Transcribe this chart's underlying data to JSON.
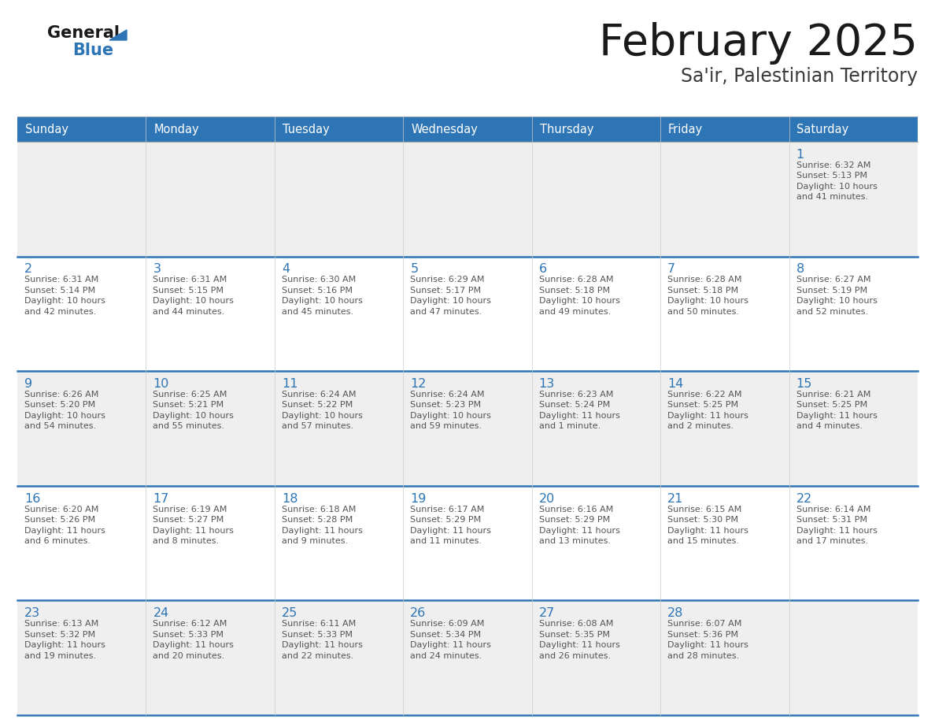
{
  "title": "February 2025",
  "subtitle": "Sa'ir, Palestinian Territory",
  "header_bg": "#2E75B6",
  "header_text_color": "#FFFFFF",
  "cell_bg_white": "#FFFFFF",
  "cell_bg_gray": "#EFEFEF",
  "day_number_color": "#2E75B6",
  "info_text_color": "#555555",
  "border_color": "#2E75B6",
  "weekdays": [
    "Sunday",
    "Monday",
    "Tuesday",
    "Wednesday",
    "Thursday",
    "Friday",
    "Saturday"
  ],
  "days": [
    {
      "day": 1,
      "col": 6,
      "row": 0,
      "sunrise": "6:32 AM",
      "sunset": "5:13 PM",
      "daylight": "10 hours\nand 41 minutes."
    },
    {
      "day": 2,
      "col": 0,
      "row": 1,
      "sunrise": "6:31 AM",
      "sunset": "5:14 PM",
      "daylight": "10 hours\nand 42 minutes."
    },
    {
      "day": 3,
      "col": 1,
      "row": 1,
      "sunrise": "6:31 AM",
      "sunset": "5:15 PM",
      "daylight": "10 hours\nand 44 minutes."
    },
    {
      "day": 4,
      "col": 2,
      "row": 1,
      "sunrise": "6:30 AM",
      "sunset": "5:16 PM",
      "daylight": "10 hours\nand 45 minutes."
    },
    {
      "day": 5,
      "col": 3,
      "row": 1,
      "sunrise": "6:29 AM",
      "sunset": "5:17 PM",
      "daylight": "10 hours\nand 47 minutes."
    },
    {
      "day": 6,
      "col": 4,
      "row": 1,
      "sunrise": "6:28 AM",
      "sunset": "5:18 PM",
      "daylight": "10 hours\nand 49 minutes."
    },
    {
      "day": 7,
      "col": 5,
      "row": 1,
      "sunrise": "6:28 AM",
      "sunset": "5:18 PM",
      "daylight": "10 hours\nand 50 minutes."
    },
    {
      "day": 8,
      "col": 6,
      "row": 1,
      "sunrise": "6:27 AM",
      "sunset": "5:19 PM",
      "daylight": "10 hours\nand 52 minutes."
    },
    {
      "day": 9,
      "col": 0,
      "row": 2,
      "sunrise": "6:26 AM",
      "sunset": "5:20 PM",
      "daylight": "10 hours\nand 54 minutes."
    },
    {
      "day": 10,
      "col": 1,
      "row": 2,
      "sunrise": "6:25 AM",
      "sunset": "5:21 PM",
      "daylight": "10 hours\nand 55 minutes."
    },
    {
      "day": 11,
      "col": 2,
      "row": 2,
      "sunrise": "6:24 AM",
      "sunset": "5:22 PM",
      "daylight": "10 hours\nand 57 minutes."
    },
    {
      "day": 12,
      "col": 3,
      "row": 2,
      "sunrise": "6:24 AM",
      "sunset": "5:23 PM",
      "daylight": "10 hours\nand 59 minutes."
    },
    {
      "day": 13,
      "col": 4,
      "row": 2,
      "sunrise": "6:23 AM",
      "sunset": "5:24 PM",
      "daylight": "11 hours\nand 1 minute."
    },
    {
      "day": 14,
      "col": 5,
      "row": 2,
      "sunrise": "6:22 AM",
      "sunset": "5:25 PM",
      "daylight": "11 hours\nand 2 minutes."
    },
    {
      "day": 15,
      "col": 6,
      "row": 2,
      "sunrise": "6:21 AM",
      "sunset": "5:25 PM",
      "daylight": "11 hours\nand 4 minutes."
    },
    {
      "day": 16,
      "col": 0,
      "row": 3,
      "sunrise": "6:20 AM",
      "sunset": "5:26 PM",
      "daylight": "11 hours\nand 6 minutes."
    },
    {
      "day": 17,
      "col": 1,
      "row": 3,
      "sunrise": "6:19 AM",
      "sunset": "5:27 PM",
      "daylight": "11 hours\nand 8 minutes."
    },
    {
      "day": 18,
      "col": 2,
      "row": 3,
      "sunrise": "6:18 AM",
      "sunset": "5:28 PM",
      "daylight": "11 hours\nand 9 minutes."
    },
    {
      "day": 19,
      "col": 3,
      "row": 3,
      "sunrise": "6:17 AM",
      "sunset": "5:29 PM",
      "daylight": "11 hours\nand 11 minutes."
    },
    {
      "day": 20,
      "col": 4,
      "row": 3,
      "sunrise": "6:16 AM",
      "sunset": "5:29 PM",
      "daylight": "11 hours\nand 13 minutes."
    },
    {
      "day": 21,
      "col": 5,
      "row": 3,
      "sunrise": "6:15 AM",
      "sunset": "5:30 PM",
      "daylight": "11 hours\nand 15 minutes."
    },
    {
      "day": 22,
      "col": 6,
      "row": 3,
      "sunrise": "6:14 AM",
      "sunset": "5:31 PM",
      "daylight": "11 hours\nand 17 minutes."
    },
    {
      "day": 23,
      "col": 0,
      "row": 4,
      "sunrise": "6:13 AM",
      "sunset": "5:32 PM",
      "daylight": "11 hours\nand 19 minutes."
    },
    {
      "day": 24,
      "col": 1,
      "row": 4,
      "sunrise": "6:12 AM",
      "sunset": "5:33 PM",
      "daylight": "11 hours\nand 20 minutes."
    },
    {
      "day": 25,
      "col": 2,
      "row": 4,
      "sunrise": "6:11 AM",
      "sunset": "5:33 PM",
      "daylight": "11 hours\nand 22 minutes."
    },
    {
      "day": 26,
      "col": 3,
      "row": 4,
      "sunrise": "6:09 AM",
      "sunset": "5:34 PM",
      "daylight": "11 hours\nand 24 minutes."
    },
    {
      "day": 27,
      "col": 4,
      "row": 4,
      "sunrise": "6:08 AM",
      "sunset": "5:35 PM",
      "daylight": "11 hours\nand 26 minutes."
    },
    {
      "day": 28,
      "col": 5,
      "row": 4,
      "sunrise": "6:07 AM",
      "sunset": "5:36 PM",
      "daylight": "11 hours\nand 28 minutes."
    }
  ]
}
